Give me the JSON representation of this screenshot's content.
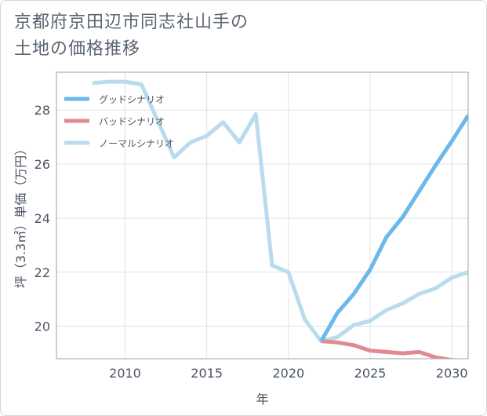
{
  "title_lines": [
    "京都府京田辺市同志社山手の",
    "土地の価格推移"
  ],
  "chart_data": {
    "type": "line",
    "xlabel": "年",
    "ylabel": "坪（3.3㎡）単価（万円）",
    "xlim": [
      2005.8,
      2031
    ],
    "ylim": [
      18.8,
      29.4
    ],
    "x_ticks": [
      2010,
      2015,
      2020,
      2025,
      2030
    ],
    "y_ticks": [
      20,
      22,
      24,
      26,
      28
    ],
    "grid": true,
    "legend_placement": "top-left",
    "series": [
      {
        "name": "グッドシナリオ",
        "color": "#6cb8ec",
        "x": [
          2022,
          2023,
          2024,
          2025,
          2026,
          2027,
          2028,
          2029,
          2030,
          2031
        ],
        "values": [
          19.45,
          20.5,
          21.2,
          22.1,
          23.3,
          24.05,
          25.0,
          25.95,
          26.85,
          27.8
        ]
      },
      {
        "name": "バッドシナリオ",
        "color": "#e08a90",
        "x": [
          2022,
          2023,
          2024,
          2025,
          2026,
          2027,
          2028,
          2029,
          2030,
          2031
        ],
        "values": [
          19.45,
          19.4,
          19.3,
          19.1,
          19.05,
          19.0,
          19.05,
          18.85,
          18.75,
          18.7
        ]
      },
      {
        "name": "ノーマルシナリオ",
        "color": "#b9dcec",
        "x": [
          2008,
          2009,
          2010,
          2011,
          2012,
          2013,
          2014,
          2015,
          2016,
          2017,
          2018,
          2019,
          2020,
          2021,
          2022,
          2023,
          2024,
          2025,
          2026,
          2027,
          2028,
          2029,
          2030,
          2031
        ],
        "values": [
          29.0,
          29.05,
          29.05,
          28.95,
          27.6,
          26.25,
          26.8,
          27.05,
          27.55,
          26.8,
          27.85,
          22.25,
          22.0,
          20.25,
          19.45,
          19.6,
          20.05,
          20.2,
          20.6,
          20.85,
          21.2,
          21.4,
          21.8,
          22.0
        ]
      }
    ]
  }
}
